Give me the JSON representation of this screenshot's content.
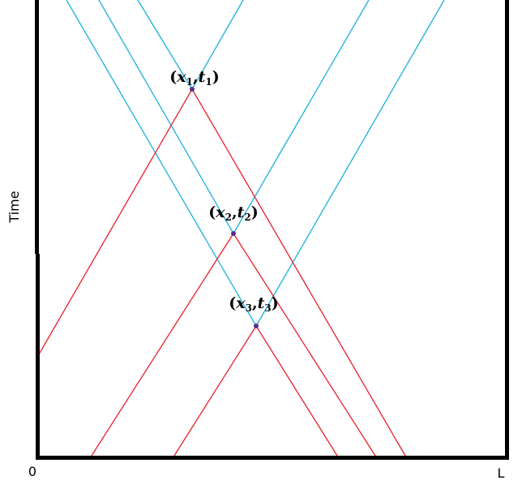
{
  "axis": {
    "time": "Time",
    "origin": "0",
    "end": "L"
  },
  "points": [
    {
      "label": [
        "(",
        "x",
        "1",
        ",",
        "t",
        "1",
        ")"
      ]
    },
    {
      "label": [
        "(",
        "x",
        "2",
        ",",
        "t",
        "2",
        ")"
      ]
    },
    {
      "label": [
        "(",
        "x",
        "3",
        ",",
        "t",
        "3",
        ")"
      ]
    }
  ]
}
